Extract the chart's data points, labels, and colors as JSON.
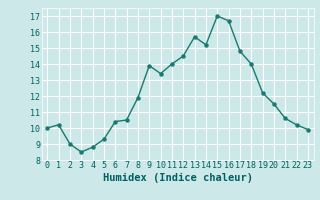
{
  "x": [
    0,
    1,
    2,
    3,
    4,
    5,
    6,
    7,
    8,
    9,
    10,
    11,
    12,
    13,
    14,
    15,
    16,
    17,
    18,
    19,
    20,
    21,
    22,
    23
  ],
  "y": [
    10.0,
    10.2,
    9.0,
    8.5,
    8.8,
    9.3,
    10.4,
    10.5,
    11.9,
    13.9,
    13.4,
    14.0,
    14.5,
    15.7,
    15.2,
    17.0,
    16.7,
    14.8,
    14.0,
    12.2,
    11.5,
    10.6,
    10.2,
    9.9
  ],
  "line_color": "#1a7a6e",
  "marker": "o",
  "markersize": 2.2,
  "linewidth": 1.0,
  "xlabel": "Humidex (Indice chaleur)",
  "xlim": [
    -0.5,
    23.5
  ],
  "ylim": [
    8,
    17.5
  ],
  "yticks": [
    8,
    9,
    10,
    11,
    12,
    13,
    14,
    15,
    16,
    17
  ],
  "xticks": [
    0,
    1,
    2,
    3,
    4,
    5,
    6,
    7,
    8,
    9,
    10,
    11,
    12,
    13,
    14,
    15,
    16,
    17,
    18,
    19,
    20,
    21,
    22,
    23
  ],
  "bg_color": "#cce8e8",
  "grid_color": "#ffffff",
  "tick_color": "#006060",
  "label_color": "#006060",
  "xlabel_fontsize": 7.5,
  "tick_fontsize": 6.0
}
